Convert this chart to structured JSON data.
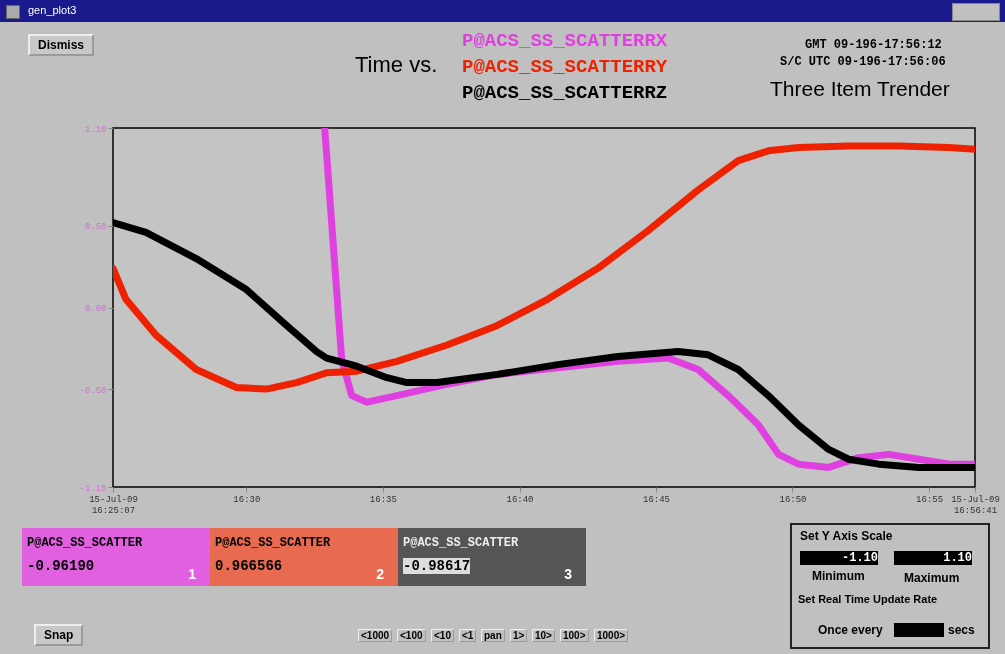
{
  "chart_data": {
    "type": "line",
    "title": "Time vs.",
    "subtitle": "Three Item Trender",
    "xlim": [
      16.4186,
      16.9447
    ],
    "ylim": [
      -1.1,
      1.1
    ],
    "xticks": [
      {
        "value": 16.4186,
        "label": "15-Jul-09 16:25:07"
      },
      {
        "value": 16.5,
        "label": "16:30"
      },
      {
        "value": 16.5833,
        "label": "16:35"
      },
      {
        "value": 16.6667,
        "label": "16:40"
      },
      {
        "value": 16.75,
        "label": "16:45"
      },
      {
        "value": 16.8333,
        "label": "16:50"
      },
      {
        "value": 16.9167,
        "label": "16:55"
      },
      {
        "value": 16.9447,
        "label": "15-Jul-09 16:56:41"
      }
    ],
    "yticks": [
      {
        "value": 1.1,
        "label": "1.10"
      },
      {
        "value": 0.5,
        "label": "0.50"
      },
      {
        "value": 0,
        "label": "0.00"
      },
      {
        "value": -0.5,
        "label": "-0.50"
      },
      {
        "value": -1.1,
        "label": "-1.10"
      }
    ],
    "marker": "none",
    "line_style": "solid",
    "series": [
      {
        "name": "P@ACS_SS_SCATTERRX",
        "color": "#e040e0",
        "x": [
          16.5478,
          16.5582,
          16.5643,
          16.5735,
          16.5919,
          16.6225,
          16.6532,
          16.69,
          16.7267,
          16.7574,
          16.7757,
          16.7941,
          16.8125,
          16.8248,
          16.837,
          16.8554,
          16.8738,
          16.8922,
          16.9105,
          16.9289,
          16.9447
        ],
        "values": [
          1.1,
          -0.32,
          -0.54,
          -0.58,
          -0.54,
          -0.47,
          -0.41,
          -0.37,
          -0.33,
          -0.31,
          -0.38,
          -0.54,
          -0.72,
          -0.9,
          -0.96,
          -0.98,
          -0.92,
          -0.9,
          -0.93,
          -0.96,
          -0.96
        ]
      },
      {
        "name": "P@ACS_SS_SCATTERRY",
        "color": "#ee2200",
        "x": [
          16.4186,
          16.4265,
          16.4449,
          16.4694,
          16.4939,
          16.5123,
          16.5306,
          16.549,
          16.5674,
          16.5919,
          16.6225,
          16.6532,
          16.6838,
          16.7145,
          16.7451,
          16.7757,
          16.8002,
          16.8186,
          16.837,
          16.8676,
          16.8983,
          16.9289,
          16.9447
        ],
        "values": [
          0.24,
          0.05,
          -0.17,
          -0.38,
          -0.49,
          -0.5,
          -0.46,
          -0.4,
          -0.39,
          -0.33,
          -0.23,
          -0.11,
          0.05,
          0.24,
          0.47,
          0.72,
          0.9,
          0.96,
          0.98,
          0.99,
          0.99,
          0.98,
          0.97
        ]
      },
      {
        "name": "P@ACS_SS_SCATTERRZ",
        "color": "#000000",
        "x": [
          16.4186,
          16.4387,
          16.4694,
          16.5,
          16.5245,
          16.5429,
          16.549,
          16.5674,
          16.5858,
          16.598,
          16.6164,
          16.6532,
          16.69,
          16.7267,
          16.7635,
          16.7819,
          16.8002,
          16.8186,
          16.837,
          16.8554,
          16.8676,
          16.886,
          16.9105,
          16.9447
        ],
        "values": [
          0.52,
          0.46,
          0.3,
          0.11,
          -0.11,
          -0.27,
          -0.31,
          -0.36,
          -0.43,
          -0.46,
          -0.46,
          -0.41,
          -0.35,
          -0.3,
          -0.27,
          -0.29,
          -0.38,
          -0.54,
          -0.72,
          -0.87,
          -0.93,
          -0.96,
          -0.98,
          -0.98
        ]
      }
    ],
    "annotations": [
      "gen_plot3",
      "GMT 09-196-17:56:12",
      "S/C UTC 09-196-17:56:06",
      "Dismiss",
      "Snap",
      "P@ACS_SS_SCATTER",
      "-0.96190",
      "1",
      "P@ACS_SS_SCATTER",
      "0.966566",
      "2",
      "P@ACS_SS_SCATTER",
      "-0.98617",
      "3",
      "Set Y Axis Scale",
      "-1.10",
      "Minimum",
      "1.10",
      "Maximum",
      "Set Real Time Update Rate",
      "Once every",
      "secs",
      "<1000",
      "<100",
      "<10",
      "<1",
      "pan",
      "1>",
      "10>",
      "100>",
      "1000>"
    ]
  }
}
